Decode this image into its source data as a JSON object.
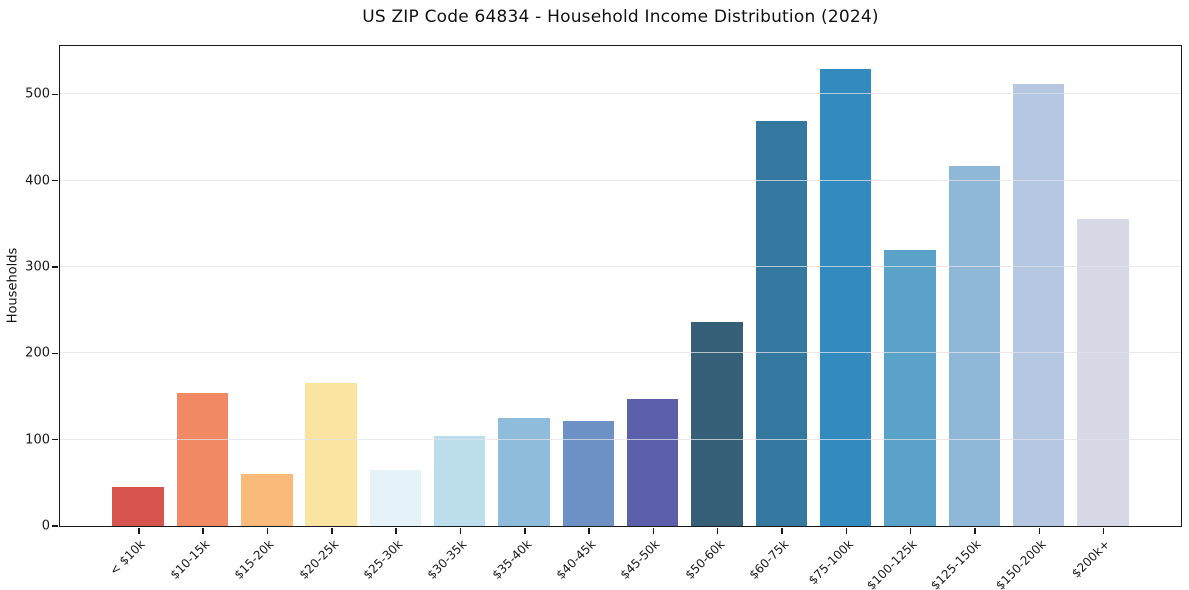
{
  "figure": {
    "background_color": "#ffffff",
    "axis_color": "#1a1a1a",
    "grid_color": "#e1e1e9"
  },
  "chart_data": {
    "type": "bar",
    "title": "US ZIP Code 64834 - Household Income Distribution (2024)",
    "xlabel": "",
    "ylabel": "Households",
    "ylim": [
      0,
      556
    ],
    "yticks": [
      0,
      100,
      200,
      300,
      400,
      500
    ],
    "grid": "horizontal-only",
    "legend": "none",
    "categories": [
      "< $10k",
      "$10-15k",
      "$15-20k",
      "$20-25k",
      "$25-30k",
      "$30-35k",
      "$35-40k",
      "$40-45k",
      "$45-50k",
      "$50-60k",
      "$60-75k",
      "$75-100k",
      "$100-125k",
      "$125-150k",
      "$150-200k",
      "$200k+"
    ],
    "values": [
      45,
      154,
      60,
      166,
      65,
      104,
      125,
      122,
      147,
      236,
      469,
      529,
      320,
      417,
      512,
      356
    ],
    "bar_colors": [
      "#d6534e",
      "#f18a64",
      "#fabb7a",
      "#fbe3a2",
      "#e5f2f8",
      "#bcdeec",
      "#90bcdc",
      "#6d91c4",
      "#5c5fa9",
      "#366077",
      "#35789f",
      "#338abf",
      "#5aa2c8",
      "#8fb8d8",
      "#b5c7e1",
      "#d7d9e7"
    ]
  }
}
